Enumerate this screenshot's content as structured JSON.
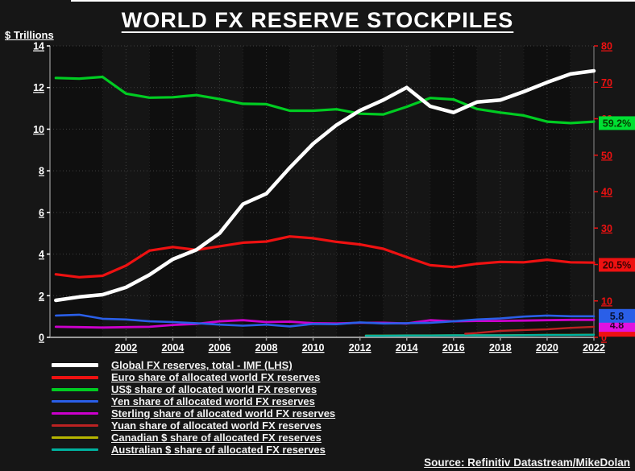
{
  "chart_data": {
    "type": "line",
    "title": "WORLD FX RESERVE STOCKPILES",
    "left_axis": {
      "label": "$ Trillions",
      "min": 0,
      "max": 14,
      "ticks": [
        14,
        12,
        10,
        8,
        6,
        4,
        2,
        0
      ],
      "color": "#ffffff"
    },
    "right_axis": {
      "min": 0,
      "max": 80,
      "ticks": [
        80,
        70,
        60,
        50,
        40,
        30,
        20,
        10,
        0
      ],
      "color": "#ee1111"
    },
    "x_axis": {
      "min": 1998.75,
      "max": 2022,
      "ticks": [
        2002,
        2004,
        2006,
        2008,
        2010,
        2012,
        2014,
        2016,
        2018,
        2020,
        2022
      ],
      "color": "#ffffff"
    },
    "grid": "dotted",
    "legend_position": "bottom-left",
    "x": [
      1999,
      2000,
      2001,
      2002,
      2003,
      2004,
      2005,
      2006,
      2007,
      2008,
      2009,
      2010,
      2011,
      2012,
      2013,
      2014,
      2015,
      2016,
      2017,
      2018,
      2019,
      2020,
      2021,
      2022
    ],
    "series": [
      {
        "name": "Canadian $ share of allocated FX reserves",
        "axis": "right",
        "color": "#b5b500",
        "width": 2.2,
        "x": [
          2012.25,
          2013,
          2014,
          2015,
          2016,
          2017,
          2018,
          2019,
          2020,
          2021,
          2022
        ],
        "values": [
          0.5,
          0.5,
          0.55,
          0.55,
          0.6,
          0.6,
          0.6,
          0.65,
          0.7,
          0.7,
          0.75
        ]
      },
      {
        "name": "Australian $ share of allocated FX reserves",
        "axis": "right",
        "color": "#00b2a0",
        "width": 2.4,
        "x": [
          2012.25,
          2013,
          2014,
          2015,
          2016,
          2017,
          2018,
          2019,
          2020,
          2021,
          2022
        ],
        "values": [
          0.45,
          0.45,
          0.5,
          0.5,
          0.55,
          0.55,
          0.55,
          0.6,
          0.65,
          0.65,
          0.7
        ]
      },
      {
        "name": "Yuan share of allocated world FX reserves",
        "axis": "right",
        "color": "#bb2222",
        "width": 2.4,
        "x": [
          2016.5,
          2017,
          2018,
          2019,
          2020,
          2021,
          2022
        ],
        "values": [
          1.0,
          1.2,
          1.8,
          2.0,
          2.2,
          2.6,
          2.9
        ]
      },
      {
        "name": "Sterling share of allocated world FX reserves",
        "axis": "right",
        "color": "#cc00cc",
        "width": 2.8,
        "values": [
          2.9,
          2.8,
          2.7,
          2.8,
          2.9,
          3.4,
          3.7,
          4.4,
          4.7,
          4.2,
          4.3,
          3.9,
          3.8,
          4.0,
          4.0,
          3.8,
          4.7,
          4.4,
          4.5,
          4.5,
          4.6,
          4.7,
          4.8,
          4.8
        ]
      },
      {
        "name": "Yen share of allocated world FX reserves",
        "axis": "right",
        "color": "#2a5fe8",
        "width": 2.6,
        "values": [
          6.0,
          6.2,
          5.1,
          4.9,
          4.4,
          4.2,
          3.9,
          3.5,
          3.2,
          3.5,
          3.0,
          3.7,
          3.6,
          4.1,
          3.8,
          3.9,
          4.0,
          4.4,
          4.9,
          5.2,
          5.7,
          6.0,
          5.8,
          5.8
        ]
      },
      {
        "name": "Euro share of allocated world FX reserves",
        "axis": "right",
        "color": "#ee1111",
        "width": 3.2,
        "values": [
          17.3,
          16.5,
          16.9,
          19.7,
          23.8,
          24.8,
          24.0,
          25.0,
          26.0,
          26.3,
          27.7,
          27.2,
          26.2,
          25.5,
          24.3,
          22.0,
          19.8,
          19.3,
          20.2,
          20.7,
          20.6,
          21.3,
          20.6,
          20.5
        ]
      },
      {
        "name": "US$ share of allocated world FX reserves",
        "axis": "right",
        "color": "#00cc22",
        "width": 3.2,
        "values": [
          71.2,
          71.0,
          71.5,
          66.9,
          65.8,
          65.9,
          66.5,
          65.4,
          64.1,
          64.0,
          62.2,
          62.2,
          62.6,
          61.4,
          61.2,
          63.3,
          65.7,
          65.3,
          62.7,
          61.7,
          60.9,
          59.2,
          58.8,
          59.2
        ]
      },
      {
        "name": "Global FX reserves, total - IMF (LHS)",
        "axis": "left",
        "color": "#ffffff",
        "width": 4.5,
        "values": [
          1.78,
          1.94,
          2.05,
          2.4,
          3.0,
          3.75,
          4.2,
          5.0,
          6.4,
          6.9,
          8.15,
          9.3,
          10.2,
          10.9,
          11.4,
          12.0,
          11.1,
          10.8,
          11.3,
          11.4,
          11.8,
          12.25,
          12.65,
          12.8
        ]
      }
    ],
    "value_labels": [
      {
        "text": "",
        "at": 1.4,
        "bg": "#ee1111",
        "fg": "#3a0404"
      },
      {
        "text": "4.8",
        "at": 3.4,
        "bg": "#e012e0",
        "fg": "#33002f"
      },
      {
        "text": "5.8",
        "at": 5.9,
        "bg": "#2a5fe8",
        "fg": "#071233"
      },
      {
        "text": "20.5%",
        "at": 19.9,
        "bg": "#ee1111",
        "fg": "#3a0404"
      },
      {
        "text": "59.2%",
        "at": 58.8,
        "bg": "#00e033",
        "fg": "#063a00"
      }
    ]
  },
  "legend": {
    "items": [
      {
        "label": "Global FX reserves, total - IMF (LHS)",
        "color": "#ffffff",
        "weight": 5
      },
      {
        "label": "Euro share of allocated world FX reserves",
        "color": "#ee1111",
        "weight": 4
      },
      {
        "label": "US$ share of allocated world FX reserves",
        "color": "#00cc22",
        "weight": 4
      },
      {
        "label": "Yen share of allocated world FX reserves",
        "color": "#2a5fe8",
        "weight": 3
      },
      {
        "label": "Sterling share of allocated world FX reserves",
        "color": "#cc00cc",
        "weight": 3
      },
      {
        "label": "Yuan share of allocated world FX reserves",
        "color": "#bb2222",
        "weight": 3
      },
      {
        "label": "Canadian $ share of allocated FX reserves",
        "color": "#b5b500",
        "weight": 3
      },
      {
        "label": "Australian $ share of allocated FX reserves",
        "color": "#00b2a0",
        "weight": 3
      }
    ]
  },
  "source": {
    "text": "Source: Refinitiv Datastream/MikeDolan"
  }
}
